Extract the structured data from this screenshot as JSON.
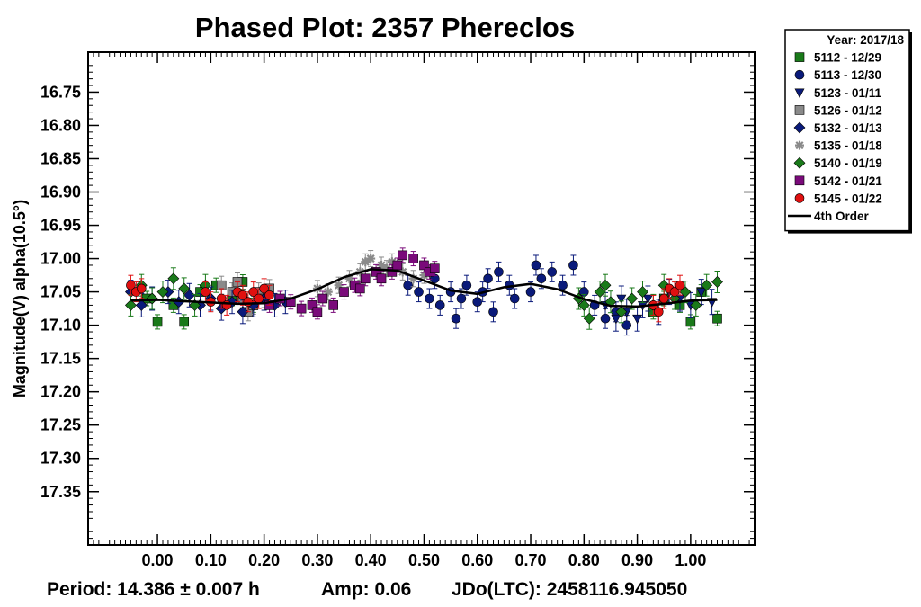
{
  "chart_data": {
    "type": "scatter",
    "title": "Phased Plot: 2357 Phereclos",
    "xlabel": "",
    "ylabel": "Magnitude(V) alpha(10.5°)",
    "xlim": [
      -0.13,
      1.12
    ],
    "ylim": [
      17.43,
      16.69
    ],
    "y_inverted": true,
    "xticks": [
      "0.00",
      "0.10",
      "0.20",
      "0.30",
      "0.40",
      "0.50",
      "0.60",
      "0.70",
      "0.80",
      "0.90",
      "1.00"
    ],
    "yticks": [
      "16.75",
      "16.80",
      "16.85",
      "16.90",
      "16.95",
      "17.00",
      "17.05",
      "17.10",
      "17.15",
      "17.20",
      "17.25",
      "17.30",
      "17.35"
    ],
    "grid": false,
    "legend_position": "outside-top-right",
    "legend_title": "Year: 2017/18",
    "series": [
      {
        "name": "5112 - 12/29",
        "marker": "square",
        "color": "#1a7a1a",
        "x": [
          -0.02,
          0.0,
          0.03,
          0.05,
          0.08,
          0.11,
          0.14,
          0.16,
          0.18,
          0.93,
          0.95,
          0.98,
          1.0,
          1.02,
          1.05
        ],
        "y": [
          17.06,
          17.095,
          17.07,
          17.095,
          17.05,
          17.04,
          17.06,
          17.035,
          17.07,
          17.08,
          17.06,
          17.07,
          17.095,
          17.05,
          17.09
        ]
      },
      {
        "name": "5113 - 12/30",
        "marker": "circle",
        "color": "#0a1a7a",
        "x": [
          0.47,
          0.49,
          0.51,
          0.52,
          0.53,
          0.55,
          0.56,
          0.57,
          0.58,
          0.6,
          0.61,
          0.62,
          0.63,
          0.64,
          0.66,
          0.67,
          0.7,
          0.71,
          0.72,
          0.74,
          0.76,
          0.78,
          0.8,
          0.82,
          0.84,
          0.86,
          0.88
        ],
        "y": [
          17.04,
          17.05,
          17.06,
          17.03,
          17.07,
          17.05,
          17.09,
          17.06,
          17.04,
          17.065,
          17.05,
          17.03,
          17.08,
          17.02,
          17.04,
          17.06,
          17.05,
          17.01,
          17.03,
          17.02,
          17.04,
          17.01,
          17.05,
          17.07,
          17.09,
          17.08,
          17.1
        ]
      },
      {
        "name": "5123 - 01/11",
        "marker": "triangle-down",
        "color": "#0a1a7a",
        "x": [
          0.84,
          0.86,
          0.87,
          0.88,
          0.9,
          0.91,
          0.92,
          0.94,
          0.96,
          0.98,
          1.0,
          1.02,
          1.04
        ],
        "y": [
          17.07,
          17.09,
          17.06,
          17.08,
          17.09,
          17.07,
          17.06,
          17.08,
          17.05,
          17.06,
          17.07,
          17.05,
          17.065
        ]
      },
      {
        "name": "5126 - 01/12",
        "marker": "square",
        "color": "#8a8a8a",
        "x": [
          0.12,
          0.14,
          0.15,
          0.16,
          0.17,
          0.18,
          0.19,
          0.2,
          0.21
        ],
        "y": [
          17.04,
          17.05,
          17.035,
          17.06,
          17.08,
          17.07,
          17.05,
          17.06,
          17.045
        ]
      },
      {
        "name": "5132 - 01/13",
        "marker": "diamond",
        "color": "#0a1a7a",
        "x": [
          -0.05,
          -0.03,
          -0.01,
          0.02,
          0.04,
          0.06,
          0.08,
          0.1,
          0.12,
          0.14,
          0.16,
          0.18,
          0.2,
          0.22,
          0.24
        ],
        "y": [
          17.05,
          17.07,
          17.06,
          17.05,
          17.065,
          17.055,
          17.07,
          17.06,
          17.075,
          17.065,
          17.08,
          17.07,
          17.06,
          17.07,
          17.065
        ]
      },
      {
        "name": "5135 - 01/18",
        "marker": "star",
        "color": "#8a8a8a",
        "x": [
          0.3,
          0.32,
          0.34,
          0.36,
          0.38,
          0.39,
          0.4,
          0.42,
          0.43,
          0.44,
          0.46,
          0.48,
          0.5
        ],
        "y": [
          17.045,
          17.05,
          17.04,
          17.03,
          17.02,
          17.005,
          17.0,
          17.01,
          17.015,
          17.005,
          17.02,
          17.03,
          17.025
        ]
      },
      {
        "name": "5140 - 01/19",
        "marker": "diamond",
        "color": "#1a7a1a",
        "x": [
          -0.05,
          -0.03,
          -0.01,
          0.01,
          0.03,
          0.05,
          0.07,
          0.09,
          0.79,
          0.8,
          0.81,
          0.83,
          0.84,
          0.85,
          0.87,
          0.89,
          0.91,
          0.93,
          0.95,
          0.97,
          0.99,
          1.01,
          1.03,
          1.05
        ],
        "y": [
          17.07,
          17.04,
          17.06,
          17.05,
          17.03,
          17.045,
          17.07,
          17.04,
          17.06,
          17.07,
          17.09,
          17.05,
          17.04,
          17.065,
          17.08,
          17.06,
          17.05,
          17.07,
          17.04,
          17.06,
          17.05,
          17.07,
          17.04,
          17.035
        ]
      },
      {
        "name": "5142 - 01/21",
        "marker": "square",
        "color": "#7a0a7a",
        "x": [
          0.21,
          0.23,
          0.25,
          0.27,
          0.29,
          0.3,
          0.31,
          0.33,
          0.35,
          0.37,
          0.38,
          0.39,
          0.41,
          0.42,
          0.44,
          0.45,
          0.46,
          0.48,
          0.5,
          0.51,
          0.52
        ],
        "y": [
          17.07,
          17.06,
          17.065,
          17.075,
          17.07,
          17.08,
          17.06,
          17.07,
          17.05,
          17.04,
          17.045,
          17.03,
          17.02,
          17.03,
          17.02,
          17.01,
          16.995,
          17.0,
          17.01,
          17.02,
          17.015
        ]
      },
      {
        "name": "5145 - 01/22",
        "marker": "circle",
        "color": "#e01010",
        "x": [
          -0.05,
          -0.04,
          -0.03,
          0.09,
          0.1,
          0.12,
          0.13,
          0.15,
          0.16,
          0.17,
          0.18,
          0.19,
          0.2,
          0.21,
          0.93,
          0.94,
          0.95,
          0.96,
          0.97,
          0.98
        ],
        "y": [
          17.04,
          17.05,
          17.045,
          17.05,
          17.065,
          17.06,
          17.07,
          17.05,
          17.055,
          17.065,
          17.05,
          17.06,
          17.045,
          17.055,
          17.07,
          17.08,
          17.06,
          17.045,
          17.05,
          17.04
        ]
      },
      {
        "name": "4th Order",
        "marker": "line",
        "color": "#000000",
        "x": [
          -0.05,
          0.0,
          0.05,
          0.1,
          0.15,
          0.2,
          0.25,
          0.3,
          0.35,
          0.4,
          0.45,
          0.5,
          0.55,
          0.6,
          0.65,
          0.7,
          0.75,
          0.8,
          0.85,
          0.9,
          0.95,
          1.0,
          1.05
        ],
        "y": [
          17.063,
          17.062,
          17.064,
          17.066,
          17.068,
          17.067,
          17.06,
          17.046,
          17.028,
          17.016,
          17.018,
          17.033,
          17.048,
          17.053,
          17.043,
          17.038,
          17.046,
          17.061,
          17.071,
          17.072,
          17.068,
          17.063,
          17.062
        ]
      }
    ]
  },
  "footer": {
    "period": "Period: 14.386 ± 0.007 h",
    "amp": "Amp: 0.06",
    "jdo": "JDo(LTC): 2458116.945050"
  }
}
